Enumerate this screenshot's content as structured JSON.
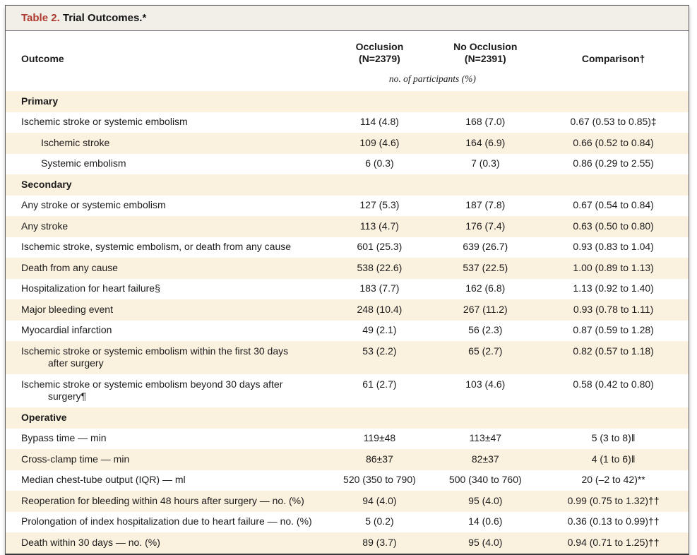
{
  "title": {
    "label": "Table 2.",
    "text": " Trial Outcomes.*"
  },
  "header": {
    "outcome": "Outcome",
    "occlusion_line1": "Occlusion",
    "occlusion_line2": "(N=2379)",
    "no_occlusion_line1": "No Occlusion",
    "no_occlusion_line2": "(N=2391)",
    "comparison": "Comparison†",
    "units_note": "no. of participants (%)"
  },
  "colors": {
    "accent_red": "#ae392f",
    "row_shade": "#fbf1df",
    "title_bar_bg": "#f1efe8",
    "border": "#5c5c5e"
  },
  "rows": [
    {
      "type": "section",
      "outcome": "Primary"
    },
    {
      "type": "data",
      "indent": false,
      "outcome": "Ischemic stroke or systemic embolism",
      "occlusion": "114 (4.8)",
      "no_occlusion": "168 (7.0)",
      "comparison": "0.67 (0.53 to 0.85)‡"
    },
    {
      "type": "data",
      "indent": true,
      "outcome": "Ischemic stroke",
      "occlusion": "109 (4.6)",
      "no_occlusion": "164 (6.9)",
      "comparison": "0.66 (0.52 to 0.84)"
    },
    {
      "type": "data",
      "indent": true,
      "outcome": "Systemic embolism",
      "occlusion": "6 (0.3)",
      "no_occlusion": "7 (0.3)",
      "comparison": "0.86 (0.29 to 2.55)"
    },
    {
      "type": "section",
      "outcome": "Secondary"
    },
    {
      "type": "data",
      "indent": false,
      "outcome": "Any stroke or systemic embolism",
      "occlusion": "127 (5.3)",
      "no_occlusion": "187 (7.8)",
      "comparison": "0.67 (0.54 to 0.84)"
    },
    {
      "type": "data",
      "indent": false,
      "outcome": "Any stroke",
      "occlusion": "113 (4.7)",
      "no_occlusion": "176 (7.4)",
      "comparison": "0.63 (0.50 to 0.80)"
    },
    {
      "type": "data",
      "indent": false,
      "outcome": "Ischemic stroke, systemic embolism, or death from any cause",
      "occlusion": "601 (25.3)",
      "no_occlusion": "639 (26.7)",
      "comparison": "0.93 (0.83 to 1.04)"
    },
    {
      "type": "data",
      "indent": false,
      "outcome": "Death from any cause",
      "occlusion": "538 (22.6)",
      "no_occlusion": "537 (22.5)",
      "comparison": "1.00 (0.89 to 1.13)"
    },
    {
      "type": "data",
      "indent": false,
      "outcome": "Hospitalization for heart failure§",
      "occlusion": "183 (7.7)",
      "no_occlusion": "162 (6.8)",
      "comparison": "1.13 (0.92 to 1.40)"
    },
    {
      "type": "data",
      "indent": false,
      "outcome": "Major bleeding event",
      "occlusion": "248 (10.4)",
      "no_occlusion": "267 (11.2)",
      "comparison": "0.93 (0.78 to 1.11)"
    },
    {
      "type": "data",
      "indent": false,
      "outcome": "Myocardial infarction",
      "occlusion": "49 (2.1)",
      "no_occlusion": "56 (2.3)",
      "comparison": "0.87 (0.59 to 1.28)"
    },
    {
      "type": "data",
      "indent": false,
      "outcome": "Ischemic stroke or systemic embolism within the first 30 days\nafter surgery",
      "occlusion": "53 (2.2)",
      "no_occlusion": "65 (2.7)",
      "comparison": "0.82 (0.57 to 1.18)"
    },
    {
      "type": "data",
      "indent": false,
      "outcome": "Ischemic stroke or systemic embolism beyond 30 days after\nsurgery¶",
      "occlusion": "61 (2.7)",
      "no_occlusion": "103 (4.6)",
      "comparison": "0.58 (0.42 to 0.80)"
    },
    {
      "type": "section",
      "outcome": "Operative"
    },
    {
      "type": "data",
      "indent": false,
      "outcome": "Bypass time — min",
      "occlusion": "119±48",
      "no_occlusion": "113±47",
      "comparison": "5 (3 to 8)‖"
    },
    {
      "type": "data",
      "indent": false,
      "outcome": "Cross-clamp time — min",
      "occlusion": "86±37",
      "no_occlusion": "82±37",
      "comparison": "4 (1 to 6)‖"
    },
    {
      "type": "data",
      "indent": false,
      "outcome": "Median chest-tube output (IQR) — ml",
      "occlusion": "520 (350 to 790)",
      "no_occlusion": "500 (340 to 760)",
      "comparison": "20 (–2 to 42)**"
    },
    {
      "type": "data",
      "indent": false,
      "outcome": "Reoperation for bleeding within 48 hours after surgery — no. (%)",
      "occlusion": "94 (4.0)",
      "no_occlusion": "95 (4.0)",
      "comparison": "0.99 (0.75 to 1.32)††"
    },
    {
      "type": "data",
      "indent": false,
      "outcome": "Prolongation of index hospitalization due to heart failure — no. (%)",
      "occlusion": "5 (0.2)",
      "no_occlusion": "14 (0.6)",
      "comparison": "0.36 (0.13 to 0.99)††"
    },
    {
      "type": "data",
      "indent": false,
      "outcome": "Death within 30 days — no. (%)",
      "occlusion": "89 (3.7)",
      "no_occlusion": "95 (4.0)",
      "comparison": "0.94 (0.71 to 1.25)††"
    }
  ]
}
